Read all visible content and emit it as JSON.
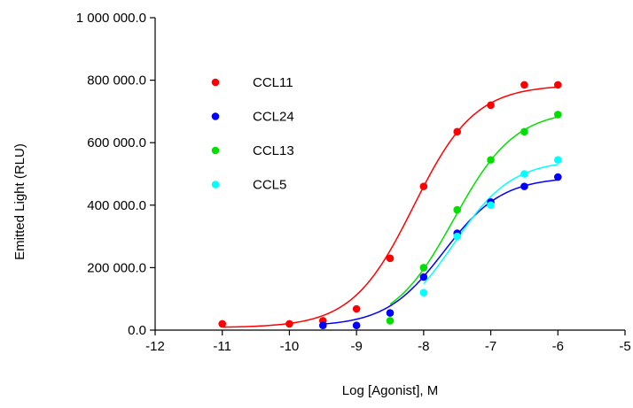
{
  "chart_data": {
    "type": "scatter",
    "title": "",
    "xlabel": "Log [Agonist], M",
    "ylabel": "Emitted Light (RLU)",
    "xlim": [
      -12,
      -5
    ],
    "ylim": [
      0,
      1000000
    ],
    "x_ticks": [
      -12,
      -11,
      -10,
      -9,
      -8,
      -7,
      -6,
      -5
    ],
    "x_tick_labels": [
      "-12",
      "-11",
      "-10",
      "-9",
      "-8",
      "-7",
      "-6",
      "-5"
    ],
    "y_ticks": [
      0,
      200000,
      400000,
      600000,
      800000,
      1000000
    ],
    "y_tick_labels": [
      "0.0",
      "200 000.0",
      "400 000.0",
      "600 000.0",
      "800 000.0",
      "1 000 000.0"
    ],
    "grid": false,
    "legend_position": "top-left",
    "fit": "sigmoidal dose-response curve through points",
    "series": [
      {
        "name": "CCL11",
        "color": "#ff0000",
        "x": [
          -11,
          -10,
          -9.5,
          -9,
          -8.5,
          -8,
          -7.5,
          -7,
          -6.5,
          -6
        ],
        "y": [
          20000,
          20000,
          30000,
          68000,
          230000,
          460000,
          635000,
          720000,
          785000,
          785000
        ],
        "fit": {
          "bottom": 8000,
          "top": 785000,
          "log_ec50": -8.15,
          "hill": 0.95
        }
      },
      {
        "name": "CCL24",
        "color": "#0000ff",
        "x": [
          -9.5,
          -9,
          -8.5,
          -8,
          -7.5,
          -7,
          -6.5,
          -6
        ],
        "y": [
          15000,
          15000,
          55000,
          170000,
          310000,
          410000,
          460000,
          490000
        ],
        "fit": {
          "bottom": 12000,
          "top": 490000,
          "log_ec50": -7.7,
          "hill": 1.0
        }
      },
      {
        "name": "CCL13",
        "color": "#00e000",
        "x": [
          -8.5,
          -8,
          -7.5,
          -7,
          -6.5,
          -6
        ],
        "y": [
          30000,
          200000,
          385000,
          545000,
          635000,
          690000
        ],
        "fit": {
          "bottom": 5000,
          "top": 705000,
          "log_ec50": -7.55,
          "hill": 0.95
        }
      },
      {
        "name": "CCL5",
        "color": "#00ffff",
        "x": [
          -8,
          -7.5,
          -7,
          -6.5,
          -6
        ],
        "y": [
          120000,
          300000,
          400000,
          500000,
          545000
        ],
        "fit": {
          "bottom": 8000,
          "top": 545000,
          "log_ec50": -7.55,
          "hill": 1.0
        }
      }
    ]
  }
}
